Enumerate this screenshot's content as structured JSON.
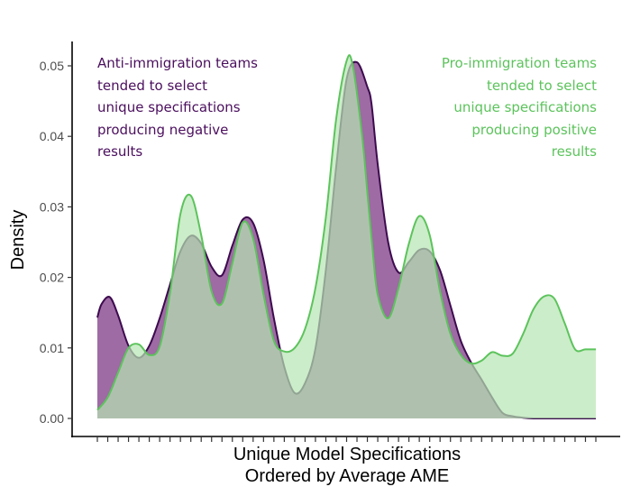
{
  "chart_data": {
    "type": "area",
    "title": "",
    "xlabel": [
      "Unique Model Specifications",
      "Ordered by Average AME"
    ],
    "ylabel": "Density",
    "ylim": [
      0,
      0.05
    ],
    "xlim": [
      0,
      48
    ],
    "x_ticks_count": 49,
    "x_tick_labels": [],
    "y_ticks": [
      0.0,
      0.01,
      0.02,
      0.03,
      0.04,
      0.05
    ],
    "y_tick_labels": [
      "0.00",
      "0.01",
      "0.02",
      "0.03",
      "0.04",
      "0.05"
    ],
    "grid": false,
    "legend": "none",
    "series": [
      {
        "color_line": "#3d0b4f",
        "color_fill": "#7d3a85",
        "x": [
          0,
          0.4,
          1.2,
          2,
          3,
          4,
          5,
          6,
          7,
          8,
          9,
          10,
          11,
          12,
          13,
          14,
          15,
          16,
          17,
          18,
          19,
          20,
          21,
          22,
          23,
          24,
          25,
          26,
          26.4,
          27,
          28,
          29,
          30,
          31,
          32,
          33,
          34,
          35,
          36,
          37,
          38,
          39,
          40,
          41,
          42,
          43,
          44,
          45,
          46,
          47,
          48
        ],
        "values": [
          0.0143,
          0.0162,
          0.0172,
          0.0146,
          0.0103,
          0.0086,
          0.0103,
          0.0142,
          0.019,
          0.0237,
          0.0259,
          0.0248,
          0.0215,
          0.0203,
          0.0245,
          0.0282,
          0.0277,
          0.0225,
          0.0142,
          0.0073,
          0.0036,
          0.005,
          0.0099,
          0.021,
          0.0357,
          0.0481,
          0.0505,
          0.047,
          0.0446,
          0.036,
          0.025,
          0.0207,
          0.0222,
          0.0239,
          0.0237,
          0.021,
          0.016,
          0.011,
          0.0079,
          0.0055,
          0.003,
          0.0008,
          0.0003,
          0.0001,
          0,
          0,
          0,
          0,
          0,
          0,
          0
        ]
      },
      {
        "color_line": "#5cc35c",
        "color_fill": "#b6e5b2",
        "x": [
          0,
          1,
          2,
          3,
          4,
          5,
          6,
          7,
          8,
          9,
          10,
          11,
          12,
          13,
          14,
          15,
          16,
          17,
          18,
          19,
          20,
          21,
          22,
          23,
          24,
          24.6,
          25.5,
          26,
          26.5,
          27,
          28,
          29,
          30,
          31,
          32,
          33,
          34,
          35,
          36,
          37,
          38,
          39,
          40,
          41,
          42,
          43,
          44,
          45,
          46,
          47,
          48
        ],
        "values": [
          0.0012,
          0.003,
          0.0065,
          0.01,
          0.0105,
          0.009,
          0.0102,
          0.0178,
          0.029,
          0.0316,
          0.026,
          0.018,
          0.0163,
          0.022,
          0.0278,
          0.0255,
          0.0176,
          0.011,
          0.0095,
          0.01,
          0.0127,
          0.0185,
          0.0285,
          0.0425,
          0.0507,
          0.05,
          0.04,
          0.032,
          0.024,
          0.0175,
          0.0142,
          0.0185,
          0.0248,
          0.0287,
          0.026,
          0.018,
          0.012,
          0.009,
          0.0078,
          0.0082,
          0.0094,
          0.0089,
          0.0092,
          0.012,
          0.0155,
          0.0173,
          0.017,
          0.0135,
          0.0098,
          0.0098,
          0.0098
        ]
      }
    ],
    "annotations": [
      {
        "lines": [
          "Anti-immigration teams",
          "tended to select",
          "unique specifications",
          "producing negative",
          "results"
        ],
        "color": "#4b0f5e",
        "align": "left",
        "position": "top-left"
      },
      {
        "lines": [
          "Pro-immigration teams",
          "tended to select",
          "unique specifications",
          "producing positive",
          "results"
        ],
        "color": "#5cc35c",
        "align": "right",
        "position": "top-right"
      }
    ]
  }
}
